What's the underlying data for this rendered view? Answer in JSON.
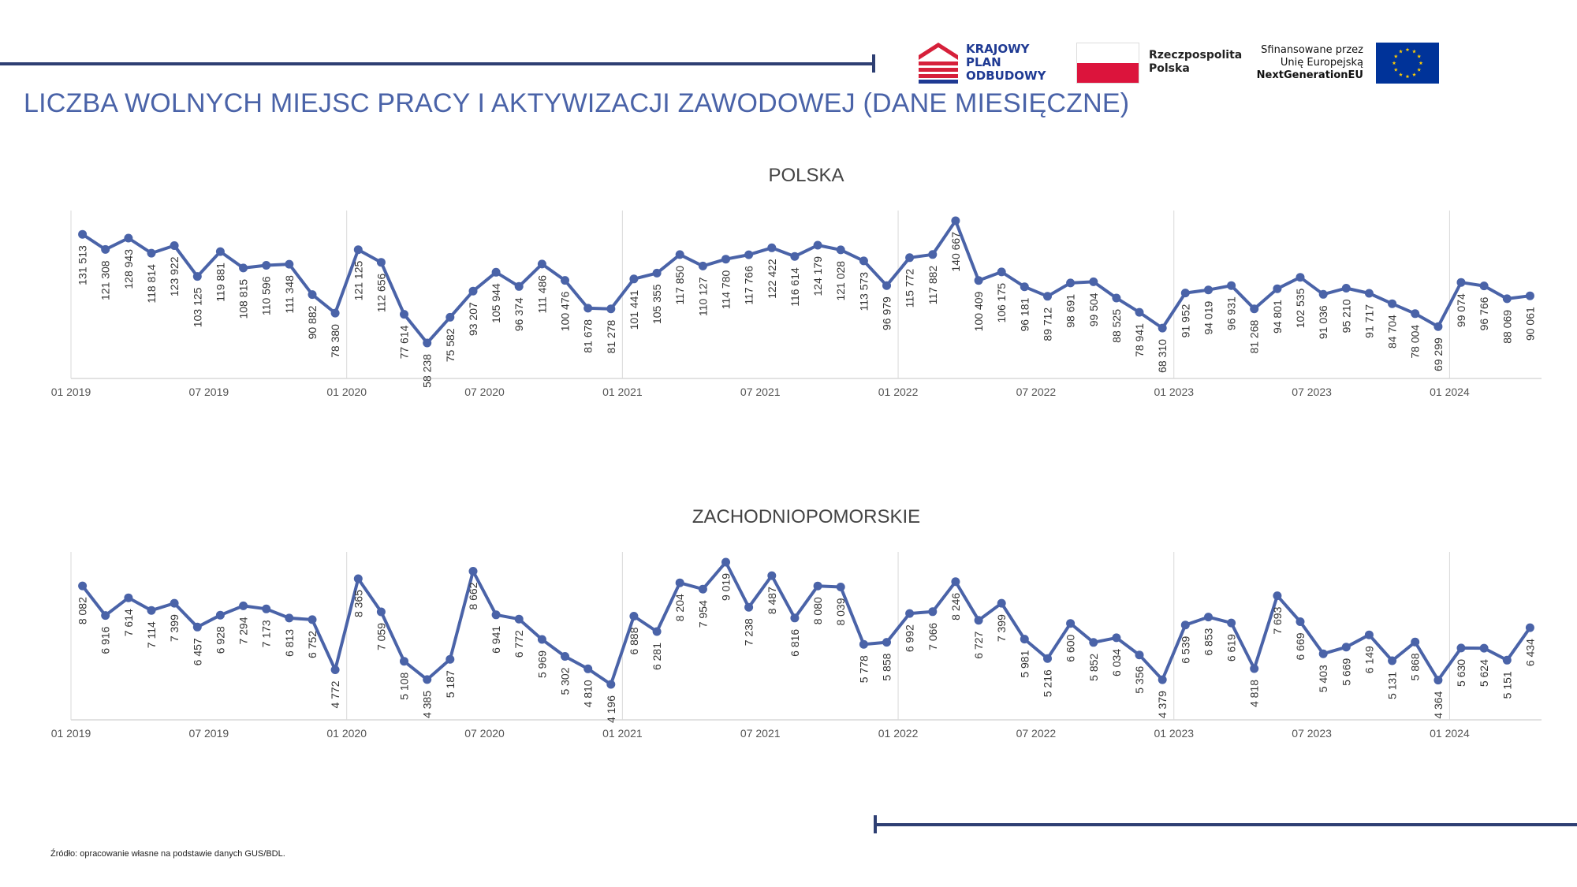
{
  "header": {
    "title": "LICZBA WOLNYCH MIEJSC PRACY I AKTYWIZACJI ZAWODOWEJ (DANE MIESIĘCZNE)",
    "kpo_lines": [
      "KRAJOWY",
      "PLAN",
      "ODBUDOWY"
    ],
    "rp_lines": [
      "Rzeczpospolita",
      "Polska"
    ],
    "eu_lines": [
      "Sfinansowane przez",
      "Unię Europejską",
      "NextGenerationEU"
    ],
    "colors": {
      "title": "#4a63a8",
      "rule": "#2e3f73",
      "kpo_red": "#d6203a",
      "kpo_navy": "#1f3a93",
      "pl_red": "#dc143c",
      "eu_blue": "#003399",
      "eu_star": "#ffcc00"
    }
  },
  "source": "Źródło: opracowanie własne na podstawie danych GUS/BDL.",
  "chart_data": [
    {
      "type": "line",
      "title": "POLSKA",
      "color": "#4a63a8",
      "x_tick_labels": [
        "01 2019",
        "07 2019",
        "01 2020",
        "07 2020",
        "01 2021",
        "07 2021",
        "01 2022",
        "07 2022",
        "01 2023",
        "07 2023",
        "01 2024"
      ],
      "x": [
        "01 2019",
        "02 2019",
        "03 2019",
        "04 2019",
        "05 2019",
        "06 2019",
        "07 2019",
        "08 2019",
        "09 2019",
        "10 2019",
        "11 2019",
        "12 2019",
        "01 2020",
        "02 2020",
        "03 2020",
        "04 2020",
        "05 2020",
        "06 2020",
        "07 2020",
        "08 2020",
        "09 2020",
        "10 2020",
        "11 2020",
        "12 2020",
        "01 2021",
        "02 2021",
        "03 2021",
        "04 2021",
        "05 2021",
        "06 2021",
        "07 2021",
        "08 2021",
        "09 2021",
        "10 2021",
        "11 2021",
        "12 2021",
        "01 2022",
        "02 2022",
        "03 2022",
        "04 2022",
        "05 2022",
        "06 2022",
        "07 2022",
        "08 2022",
        "09 2022",
        "10 2022",
        "11 2022",
        "12 2022",
        "01 2023",
        "02 2023",
        "03 2023",
        "04 2023",
        "05 2023",
        "06 2023",
        "07 2023",
        "08 2023",
        "09 2023",
        "10 2023",
        "11 2023",
        "12 2023",
        "01 2024",
        "02 2024",
        "03 2024",
        "04 2024"
      ],
      "values": [
        131513,
        121308,
        128943,
        118814,
        123922,
        103125,
        119881,
        108815,
        110596,
        111348,
        90882,
        78380,
        121125,
        112656,
        77614,
        58238,
        75582,
        93207,
        105944,
        96374,
        111486,
        100476,
        81678,
        81278,
        101441,
        105355,
        117850,
        110127,
        114780,
        117766,
        122422,
        116614,
        124179,
        121028,
        113573,
        96979,
        115772,
        117882,
        140667,
        100409,
        106175,
        96181,
        89712,
        98691,
        99504,
        88525,
        78941,
        68310,
        91952,
        94019,
        96931,
        81268,
        94801,
        102535,
        91036,
        95210,
        91717,
        84704,
        78004,
        69299,
        99074,
        96766,
        88069,
        90061
      ],
      "labels": [
        "131 513",
        "121 308",
        "128 943",
        "118 814",
        "123 922",
        "103 125",
        "119 881",
        "108 815",
        "110 596",
        "111 348",
        "90 882",
        "78 380",
        "121 125",
        "112 656",
        "77 614",
        "58 238",
        "75 582",
        "93 207",
        "105 944",
        "96 374",
        "111 486",
        "100 476",
        "81 678",
        "81 278",
        "101 441",
        "105 355",
        "117 850",
        "110 127",
        "114 780",
        "117 766",
        "122 422",
        "116 614",
        "124 179",
        "121 028",
        "113 573",
        "96 979",
        "115 772",
        "117 882",
        "140 667",
        "100 409",
        "106 175",
        "96 181",
        "89 712",
        "98 691",
        "99 504",
        "88 525",
        "78 941",
        "68 310",
        "91 952",
        "94 019",
        "96 931",
        "81 268",
        "94 801",
        "102 535",
        "91 036",
        "95 210",
        "91 717",
        "84 704",
        "78 004",
        "69 299",
        "99 074",
        "96 766",
        "88 069",
        "90 061"
      ],
      "ylim": [
        0,
        140667
      ],
      "grid": "vertical at January"
    },
    {
      "type": "line",
      "title": "ZACHODNIOPOMORSKIE",
      "color": "#4a63a8",
      "x_tick_labels": [
        "01 2019",
        "07 2019",
        "01 2020",
        "07 2020",
        "01 2021",
        "07 2021",
        "01 2022",
        "07 2022",
        "01 2023",
        "07 2023",
        "01 2024"
      ],
      "x": [
        "01 2019",
        "02 2019",
        "03 2019",
        "04 2019",
        "05 2019",
        "06 2019",
        "07 2019",
        "08 2019",
        "09 2019",
        "10 2019",
        "11 2019",
        "12 2019",
        "01 2020",
        "02 2020",
        "03 2020",
        "04 2020",
        "05 2020",
        "06 2020",
        "07 2020",
        "08 2020",
        "09 2020",
        "10 2020",
        "11 2020",
        "12 2020",
        "01 2021",
        "02 2021",
        "03 2021",
        "04 2021",
        "05 2021",
        "06 2021",
        "07 2021",
        "08 2021",
        "09 2021",
        "10 2021",
        "11 2021",
        "12 2021",
        "01 2022",
        "02 2022",
        "03 2022",
        "04 2022",
        "05 2022",
        "06 2022",
        "07 2022",
        "08 2022",
        "09 2022",
        "10 2022",
        "11 2022",
        "12 2022",
        "01 2023",
        "02 2023",
        "03 2023",
        "04 2023",
        "05 2023",
        "06 2023",
        "07 2023",
        "08 2023",
        "09 2023",
        "10 2023",
        "11 2023",
        "12 2023",
        "01 2024",
        "02 2024",
        "03 2024",
        "04 2024"
      ],
      "values": [
        8082,
        6916,
        7614,
        7114,
        7399,
        6457,
        6928,
        7294,
        7173,
        6813,
        6752,
        4772,
        8365,
        7059,
        5108,
        4385,
        5187,
        8662,
        6941,
        6772,
        5969,
        5302,
        4810,
        4196,
        6888,
        6281,
        8204,
        7954,
        9019,
        7238,
        8487,
        6816,
        8080,
        8039,
        5778,
        5858,
        6992,
        7066,
        8246,
        6727,
        7399,
        5981,
        5216,
        6600,
        5852,
        6034,
        5356,
        4379,
        6539,
        6853,
        6619,
        4818,
        7693,
        6669,
        5403,
        5669,
        6149,
        5131,
        5868,
        4364,
        5630,
        5624,
        5151,
        6434
      ],
      "labels": [
        "8 082",
        "6 916",
        "7 614",
        "7 114",
        "7 399",
        "6 457",
        "6 928",
        "7 294",
        "7 173",
        "6 813",
        "6 752",
        "4 772",
        "8 365",
        "7 059",
        "5 108",
        "4 385",
        "5 187",
        "8 662",
        "6 941",
        "6 772",
        "5 969",
        "5 302",
        "4 810",
        "4 196",
        "6 888",
        "6 281",
        "8 204",
        "7 954",
        "9 019",
        "7 238",
        "8 487",
        "6 816",
        "8 080",
        "8 039",
        "5 778",
        "5 858",
        "6 992",
        "7 066",
        "8 246",
        "6 727",
        "7 399",
        "5 981",
        "5 216",
        "6 600",
        "5 852",
        "6 034",
        "5 356",
        "4 379",
        "6 539",
        "6 853",
        "6 619",
        "4 818",
        "7 693",
        "6 669",
        "5 403",
        "5 669",
        "6 149",
        "5 131",
        "5 868",
        "4 364",
        "5 630",
        "5 624",
        "5 151",
        "6 434"
      ],
      "ylim": [
        0,
        9019
      ],
      "grid": "vertical at January"
    }
  ]
}
